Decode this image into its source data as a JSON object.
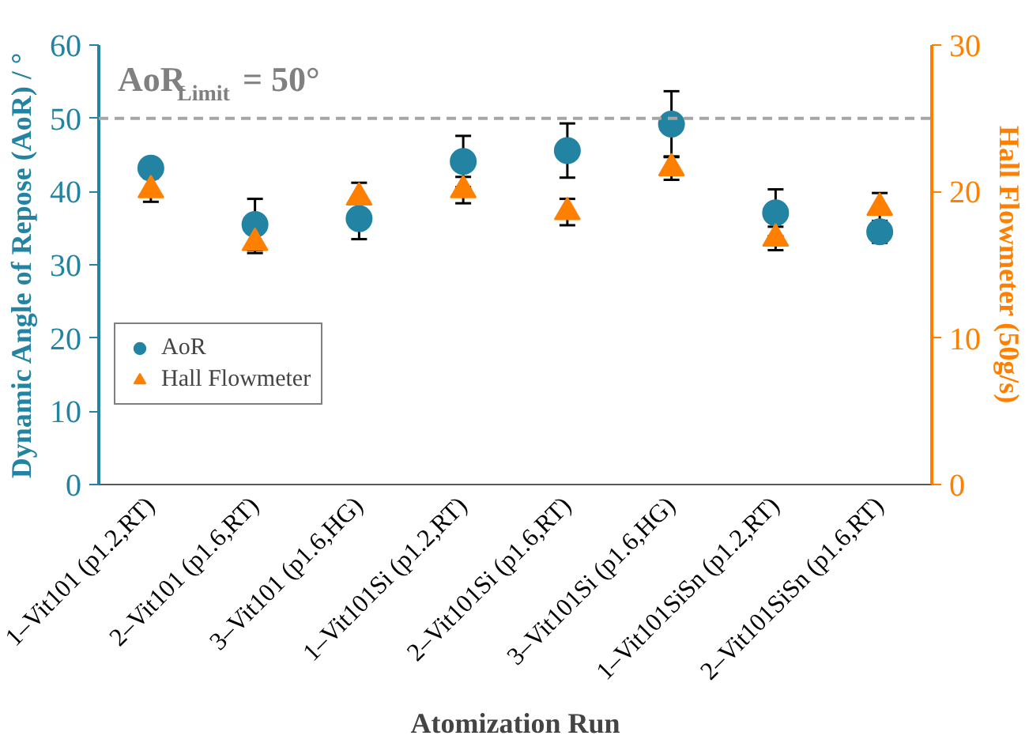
{
  "chart_data": {
    "type": "scatter",
    "xlabel": "Atomization Run",
    "ylabel": "Dynamic Angle of Repose (AoR) / °",
    "y2label": "Hall Flowmeter (50g/s)",
    "categories": [
      "1–Vit101 (p1.2,RT)",
      "2–Vit101 (p1.6,RT)",
      "3–Vit101 (p1.6,HG)",
      "1–Vit101Si (p1.2,RT)",
      "2–Vit101Si (p1.6,RT)",
      "3–Vit101Si (p1.6,HG)",
      "1–Vit101SiSn (p1.2,RT)",
      "2–Vit101SiSn (p1.6,RT)"
    ],
    "series": [
      {
        "name": "AoR",
        "color": "#2283a2",
        "marker": "circle",
        "values": [
          43.2,
          35.5,
          36.3,
          44.1,
          45.6,
          49.2,
          37.1,
          34.5
        ],
        "errors": [
          1,
          3.5,
          2.8,
          3.5,
          3.7,
          4.5,
          3.2,
          1.5
        ]
      },
      {
        "name": "Hall Flowmeter",
        "color": "#ff8000",
        "marker": "triangle",
        "axis": "y2",
        "values": [
          20.1,
          16.5,
          19.6,
          20.1,
          18.6,
          21.6,
          16.8,
          18.9
        ],
        "errors": [
          0.8,
          0.7,
          1,
          0.9,
          0.9,
          0.8,
          0.8,
          1
        ]
      }
    ],
    "ylim": [
      0,
      60
    ],
    "yticks": [
      0,
      10,
      20,
      30,
      40,
      50,
      60
    ],
    "y2lim": [
      0,
      30
    ],
    "y2ticks": [
      0,
      10,
      20,
      30
    ],
    "ref_lines": [
      {
        "axis": "y",
        "value": 50,
        "color": "#a6a6a6",
        "line_style": "dashed"
      }
    ],
    "annotations": [
      "AoR$_{Limit}$ = 50°"
    ],
    "legend": "bottom left",
    "grid": false
  }
}
